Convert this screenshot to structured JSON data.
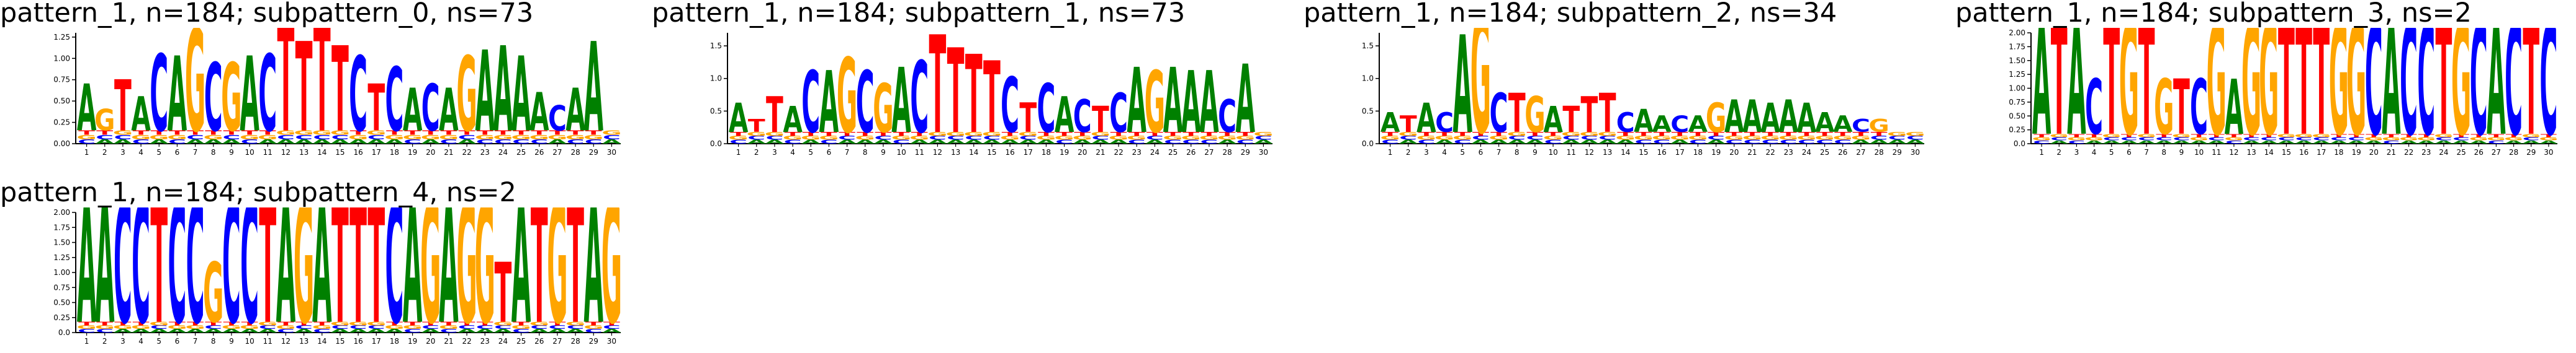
{
  "colors": {
    "A": "#008000",
    "C": "#0000ff",
    "G": "#ffa500",
    "T": "#ff0000"
  },
  "chart_data": [
    {
      "type": "sequence-logo",
      "title": "pattern_1, n=184; subpattern_0, ns=73",
      "ylim": [
        0,
        1.3
      ],
      "yticks": [
        "0.00",
        "0.25",
        "0.50",
        "0.75",
        "1.00",
        "1.25"
      ],
      "positions": [
        "1",
        "2",
        "3",
        "4",
        "5",
        "6",
        "7",
        "8",
        "9",
        "10",
        "11",
        "12",
        "13",
        "14",
        "15",
        "16",
        "17",
        "18",
        "19",
        "20",
        "21",
        "22",
        "23",
        "24",
        "25",
        "26",
        "27",
        "28",
        "29",
        "30"
      ],
      "tops": [
        "A",
        "G",
        "T",
        "A",
        "C",
        "A",
        "G",
        "C",
        "G",
        "A",
        "C",
        "T",
        "T",
        "T",
        "T",
        "C",
        "T",
        "C",
        "A",
        "C",
        "A",
        "G",
        "A",
        "A",
        "A",
        "A",
        "C",
        "A",
        "A",
        "T"
      ],
      "heights": [
        0.55,
        0.25,
        0.6,
        0.4,
        0.9,
        0.88,
        1.2,
        0.8,
        0.8,
        0.88,
        0.9,
        1.3,
        1.05,
        1.3,
        1.0,
        0.88,
        0.55,
        0.75,
        0.5,
        0.55,
        0.5,
        0.88,
        0.95,
        1.0,
        0.88,
        0.45,
        0.3,
        0.5,
        1.05,
        0.0
      ]
    },
    {
      "type": "sequence-logo",
      "title": "pattern_1, n=184; subpattern_1, ns=73",
      "ylim": [
        0,
        1.7
      ],
      "yticks": [
        "0.0",
        "0.5",
        "1.0",
        "1.5"
      ],
      "positions": [
        "1",
        "2",
        "3",
        "4",
        "5",
        "6",
        "7",
        "8",
        "9",
        "10",
        "11",
        "12",
        "13",
        "14",
        "15",
        "16",
        "17",
        "18",
        "19",
        "20",
        "21",
        "22",
        "23",
        "24",
        "25",
        "26",
        "27",
        "28",
        "29",
        "30"
      ],
      "tops": [
        "A",
        "T",
        "T",
        "A",
        "C",
        "A",
        "G",
        "C",
        "G",
        "A",
        "C",
        "T",
        "T",
        "T",
        "T",
        "C",
        "T",
        "C",
        "A",
        "C",
        "T",
        "C",
        "A",
        "G",
        "A",
        "A",
        "A",
        "C",
        "A",
        "T"
      ],
      "heights": [
        0.45,
        0.2,
        0.55,
        0.4,
        0.95,
        0.95,
        1.15,
        0.95,
        0.75,
        1.0,
        1.1,
        1.5,
        1.3,
        1.2,
        1.1,
        0.85,
        0.45,
        0.75,
        0.55,
        0.5,
        0.4,
        0.6,
        1.0,
        0.95,
        1.0,
        0.95,
        0.95,
        0.5,
        1.05,
        0.0
      ]
    },
    {
      "type": "sequence-logo",
      "title": "pattern_1, n=184; subpattern_2, ns=34",
      "ylim": [
        0,
        1.7
      ],
      "yticks": [
        "0.0",
        "0.5",
        "1.0",
        "1.5"
      ],
      "positions": [
        "1",
        "2",
        "3",
        "4",
        "5",
        "6",
        "7",
        "8",
        "9",
        "10",
        "11",
        "12",
        "13",
        "14",
        "15",
        "16",
        "17",
        "18",
        "19",
        "20",
        "21",
        "22",
        "23",
        "24",
        "25",
        "26",
        "27",
        "28",
        "29",
        "30"
      ],
      "tops": [
        "A",
        "T",
        "A",
        "C",
        "A",
        "G",
        "C",
        "T",
        "G",
        "A",
        "T",
        "T",
        "T",
        "C",
        "A",
        "A",
        "C",
        "A",
        "G",
        "A",
        "A",
        "A",
        "A",
        "A",
        "A",
        "A",
        "C",
        "G",
        "T",
        "T"
      ],
      "heights": [
        0.3,
        0.25,
        0.45,
        0.3,
        1.5,
        1.85,
        0.6,
        0.6,
        0.55,
        0.4,
        0.4,
        0.55,
        0.6,
        0.3,
        0.35,
        0.25,
        0.25,
        0.25,
        0.45,
        0.5,
        0.5,
        0.45,
        0.5,
        0.45,
        0.3,
        0.25,
        0.2,
        0.2,
        0.0,
        0.0
      ]
    },
    {
      "type": "sequence-logo",
      "title": "pattern_1, n=184; subpattern_3, ns=2",
      "ylim": [
        0,
        2.0
      ],
      "yticks": [
        "0.0",
        "0.25",
        "0.50",
        "0.75",
        "1.00",
        "1.25",
        "1.50",
        "1.75",
        "2.00"
      ],
      "positions": [
        "1",
        "2",
        "3",
        "4",
        "5",
        "6",
        "7",
        "8",
        "9",
        "10",
        "11",
        "12",
        "13",
        "14",
        "15",
        "16",
        "17",
        "18",
        "19",
        "20",
        "21",
        "22",
        "23",
        "24",
        "25",
        "26",
        "27",
        "28",
        "29",
        "30"
      ],
      "tops": [
        "A",
        "T",
        "A",
        "C",
        "T",
        "G",
        "T",
        "G",
        "T",
        "C",
        "G",
        "A",
        "G",
        "G",
        "T",
        "T",
        "T",
        "G",
        "G",
        "C",
        "A",
        "C",
        "C",
        "T",
        "G",
        "C",
        "A",
        "C",
        "T",
        "C"
      ],
      "heights": [
        2.0,
        2.0,
        2.0,
        1.0,
        2.0,
        2.0,
        2.0,
        1.0,
        1.0,
        1.0,
        2.0,
        1.0,
        2.0,
        2.0,
        2.0,
        2.0,
        2.0,
        2.0,
        2.0,
        2.0,
        2.0,
        2.0,
        2.0,
        2.0,
        2.0,
        2.0,
        2.0,
        2.0,
        2.0,
        2.0
      ]
    },
    {
      "type": "sequence-logo",
      "title": "pattern_1, n=184; subpattern_4, ns=2",
      "ylim": [
        0,
        2.0
      ],
      "yticks": [
        "0.0",
        "0.25",
        "0.50",
        "0.75",
        "1.00",
        "1.25",
        "1.50",
        "1.75",
        "2.00"
      ],
      "positions": [
        "1",
        "2",
        "3",
        "4",
        "5",
        "6",
        "7",
        "8",
        "9",
        "10",
        "11",
        "12",
        "13",
        "14",
        "15",
        "16",
        "17",
        "18",
        "19",
        "20",
        "21",
        "22",
        "23",
        "24",
        "25",
        "26",
        "27",
        "28",
        "29",
        "30"
      ],
      "tops": [
        "A",
        "A",
        "C",
        "C",
        "T",
        "C",
        "C",
        "G",
        "C",
        "C",
        "T",
        "A",
        "G",
        "A",
        "T",
        "T",
        "T",
        "C",
        "A",
        "G",
        "A",
        "G",
        "G",
        "T",
        "A",
        "T",
        "G",
        "T",
        "A",
        "G"
      ],
      "heights": [
        2.0,
        2.0,
        2.0,
        2.0,
        2.0,
        2.0,
        2.0,
        1.0,
        2.0,
        2.0,
        2.0,
        2.0,
        2.0,
        2.0,
        2.0,
        2.0,
        2.0,
        2.0,
        2.0,
        2.0,
        2.0,
        2.0,
        2.0,
        1.0,
        2.0,
        2.0,
        2.0,
        2.0,
        2.0,
        2.0
      ]
    }
  ]
}
